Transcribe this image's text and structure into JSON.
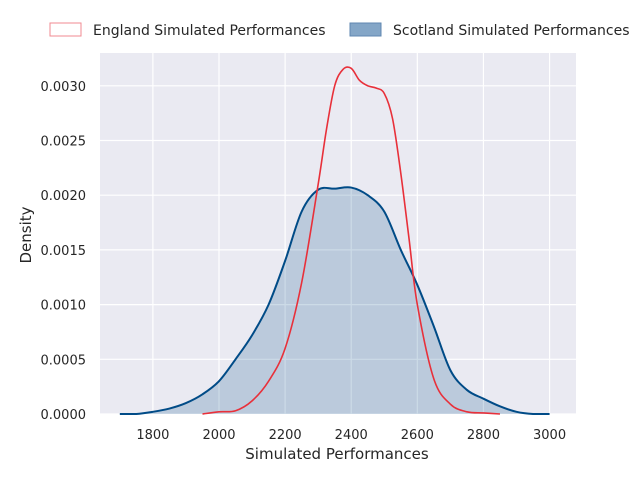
{
  "chart_data": {
    "type": "area",
    "title": "",
    "xlabel": "Simulated Performances",
    "ylabel": "Density",
    "xlim": [
      1640,
      3080
    ],
    "ylim": [
      0,
      0.0033
    ],
    "x_ticks": [
      1800,
      2000,
      2200,
      2400,
      2600,
      2800,
      3000
    ],
    "x_tick_labels": [
      "1800",
      "2000",
      "2200",
      "2400",
      "2600",
      "2800",
      "3000"
    ],
    "y_ticks": [
      0,
      0.0005,
      0.001,
      0.0015,
      0.002,
      0.0025,
      0.003
    ],
    "y_tick_labels": [
      "0.0000",
      "0.0005",
      "0.0010",
      "0.0015",
      "0.0020",
      "0.0025",
      "0.0030"
    ],
    "grid": true,
    "background": "#eaeaf2",
    "legend_position": "top",
    "series": [
      {
        "name": "England Simulated Performances",
        "color": "#e8303a",
        "fill": false,
        "x": [
          1950,
          2000,
          2050,
          2100,
          2150,
          2200,
          2250,
          2300,
          2325,
          2350,
          2375,
          2400,
          2425,
          2450,
          2475,
          2500,
          2525,
          2550,
          2575,
          2600,
          2650,
          2700,
          2750,
          2800,
          2850
        ],
        "y": [
          0.0,
          2e-05,
          3e-05,
          0.00012,
          0.0003,
          0.0006,
          0.0012,
          0.0021,
          0.0026,
          0.003,
          0.00315,
          0.00316,
          0.00305,
          0.003,
          0.00298,
          0.00293,
          0.0027,
          0.0022,
          0.0016,
          0.001,
          0.00032,
          9e-05,
          2e-05,
          1e-05,
          0.0
        ]
      },
      {
        "name": "Scotland Simulated Performances",
        "color": "#004b87",
        "fill": true,
        "x": [
          1700,
          1750,
          1800,
          1850,
          1900,
          1950,
          2000,
          2050,
          2100,
          2150,
          2200,
          2250,
          2300,
          2350,
          2400,
          2450,
          2500,
          2550,
          2600,
          2650,
          2700,
          2750,
          2800,
          2850,
          2900,
          2950,
          3000
        ],
        "y": [
          0.0,
          0.0,
          2e-05,
          5e-05,
          0.0001,
          0.00018,
          0.0003,
          0.0005,
          0.00072,
          0.001,
          0.0014,
          0.00185,
          0.00205,
          0.00206,
          0.00207,
          0.002,
          0.00185,
          0.0015,
          0.00118,
          0.0008,
          0.0004,
          0.00022,
          0.00014,
          7e-05,
          2e-05,
          0.0,
          0.0
        ]
      }
    ]
  }
}
